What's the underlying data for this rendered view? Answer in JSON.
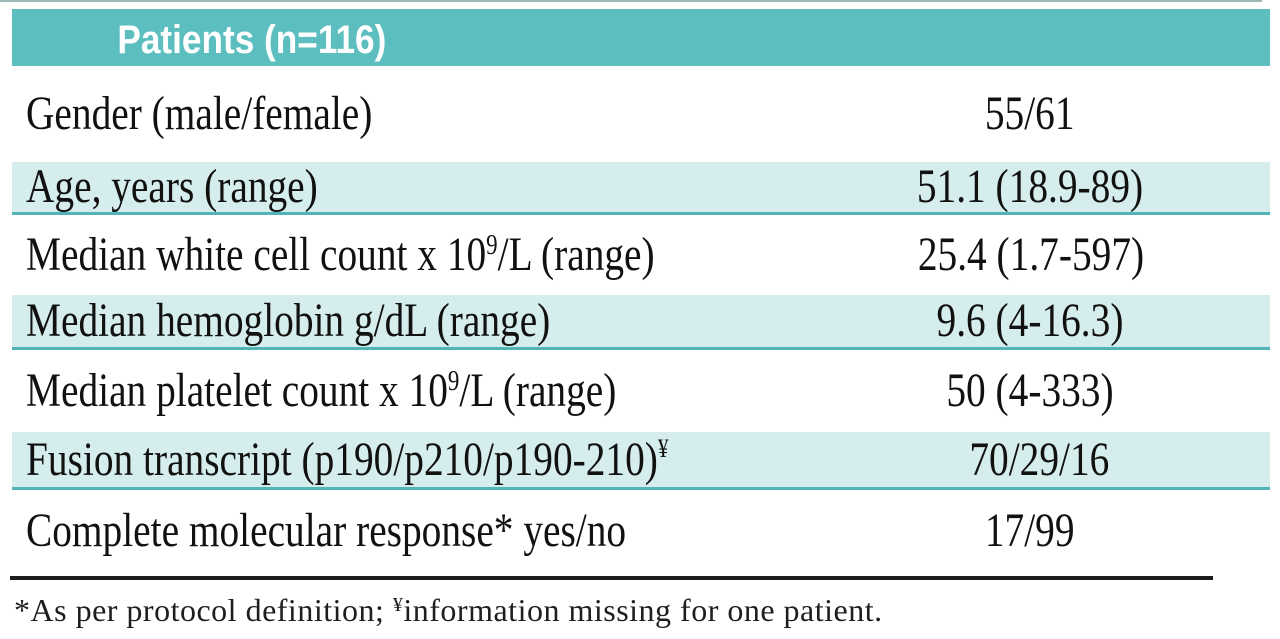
{
  "table": {
    "title_semantic": "Patient characteristics table",
    "header": {
      "value_column_label": "Patients (n=116)"
    },
    "rows": [
      {
        "label": "Gender (male/female)",
        "label_sup": "",
        "label_suffix": "",
        "value": "55/61"
      },
      {
        "label": "Age, years (range)",
        "label_sup": "",
        "label_suffix": "",
        "value": "51.1 (18.9-89)"
      },
      {
        "label": "Median white cell count x 10",
        "label_sup": "9",
        "label_suffix": "/L (range)",
        "value": "25.4 (1.7-597)"
      },
      {
        "label": "Median hemoglobin g/dL (range)",
        "label_sup": "",
        "label_suffix": "",
        "value": "9.6 (4-16.3)"
      },
      {
        "label": "Median platelet count x 10",
        "label_sup": "9",
        "label_suffix": "/L (range)",
        "value": "50 (4-333)"
      },
      {
        "label": "Fusion transcript (p190/p210/p190-210)",
        "label_sup": "¥",
        "label_suffix": "",
        "value": "70/29/16"
      },
      {
        "label": "Complete molecular response* yes/no",
        "label_sup": "",
        "label_suffix": "",
        "value": "17/99"
      }
    ],
    "footnote": {
      "prefix": "*As per protocol definition; ",
      "sup": "¥",
      "suffix": "information missing for one patient."
    }
  },
  "colors": {
    "header_teal": "#5cbebf",
    "row_stripe_teal": "#d6eded",
    "stripe_border_teal": "#52b4b6",
    "top_line": "#9db8b6",
    "rule_black": "#1c1c1c",
    "header_text": "#ffffff",
    "body_text": "#111111"
  }
}
